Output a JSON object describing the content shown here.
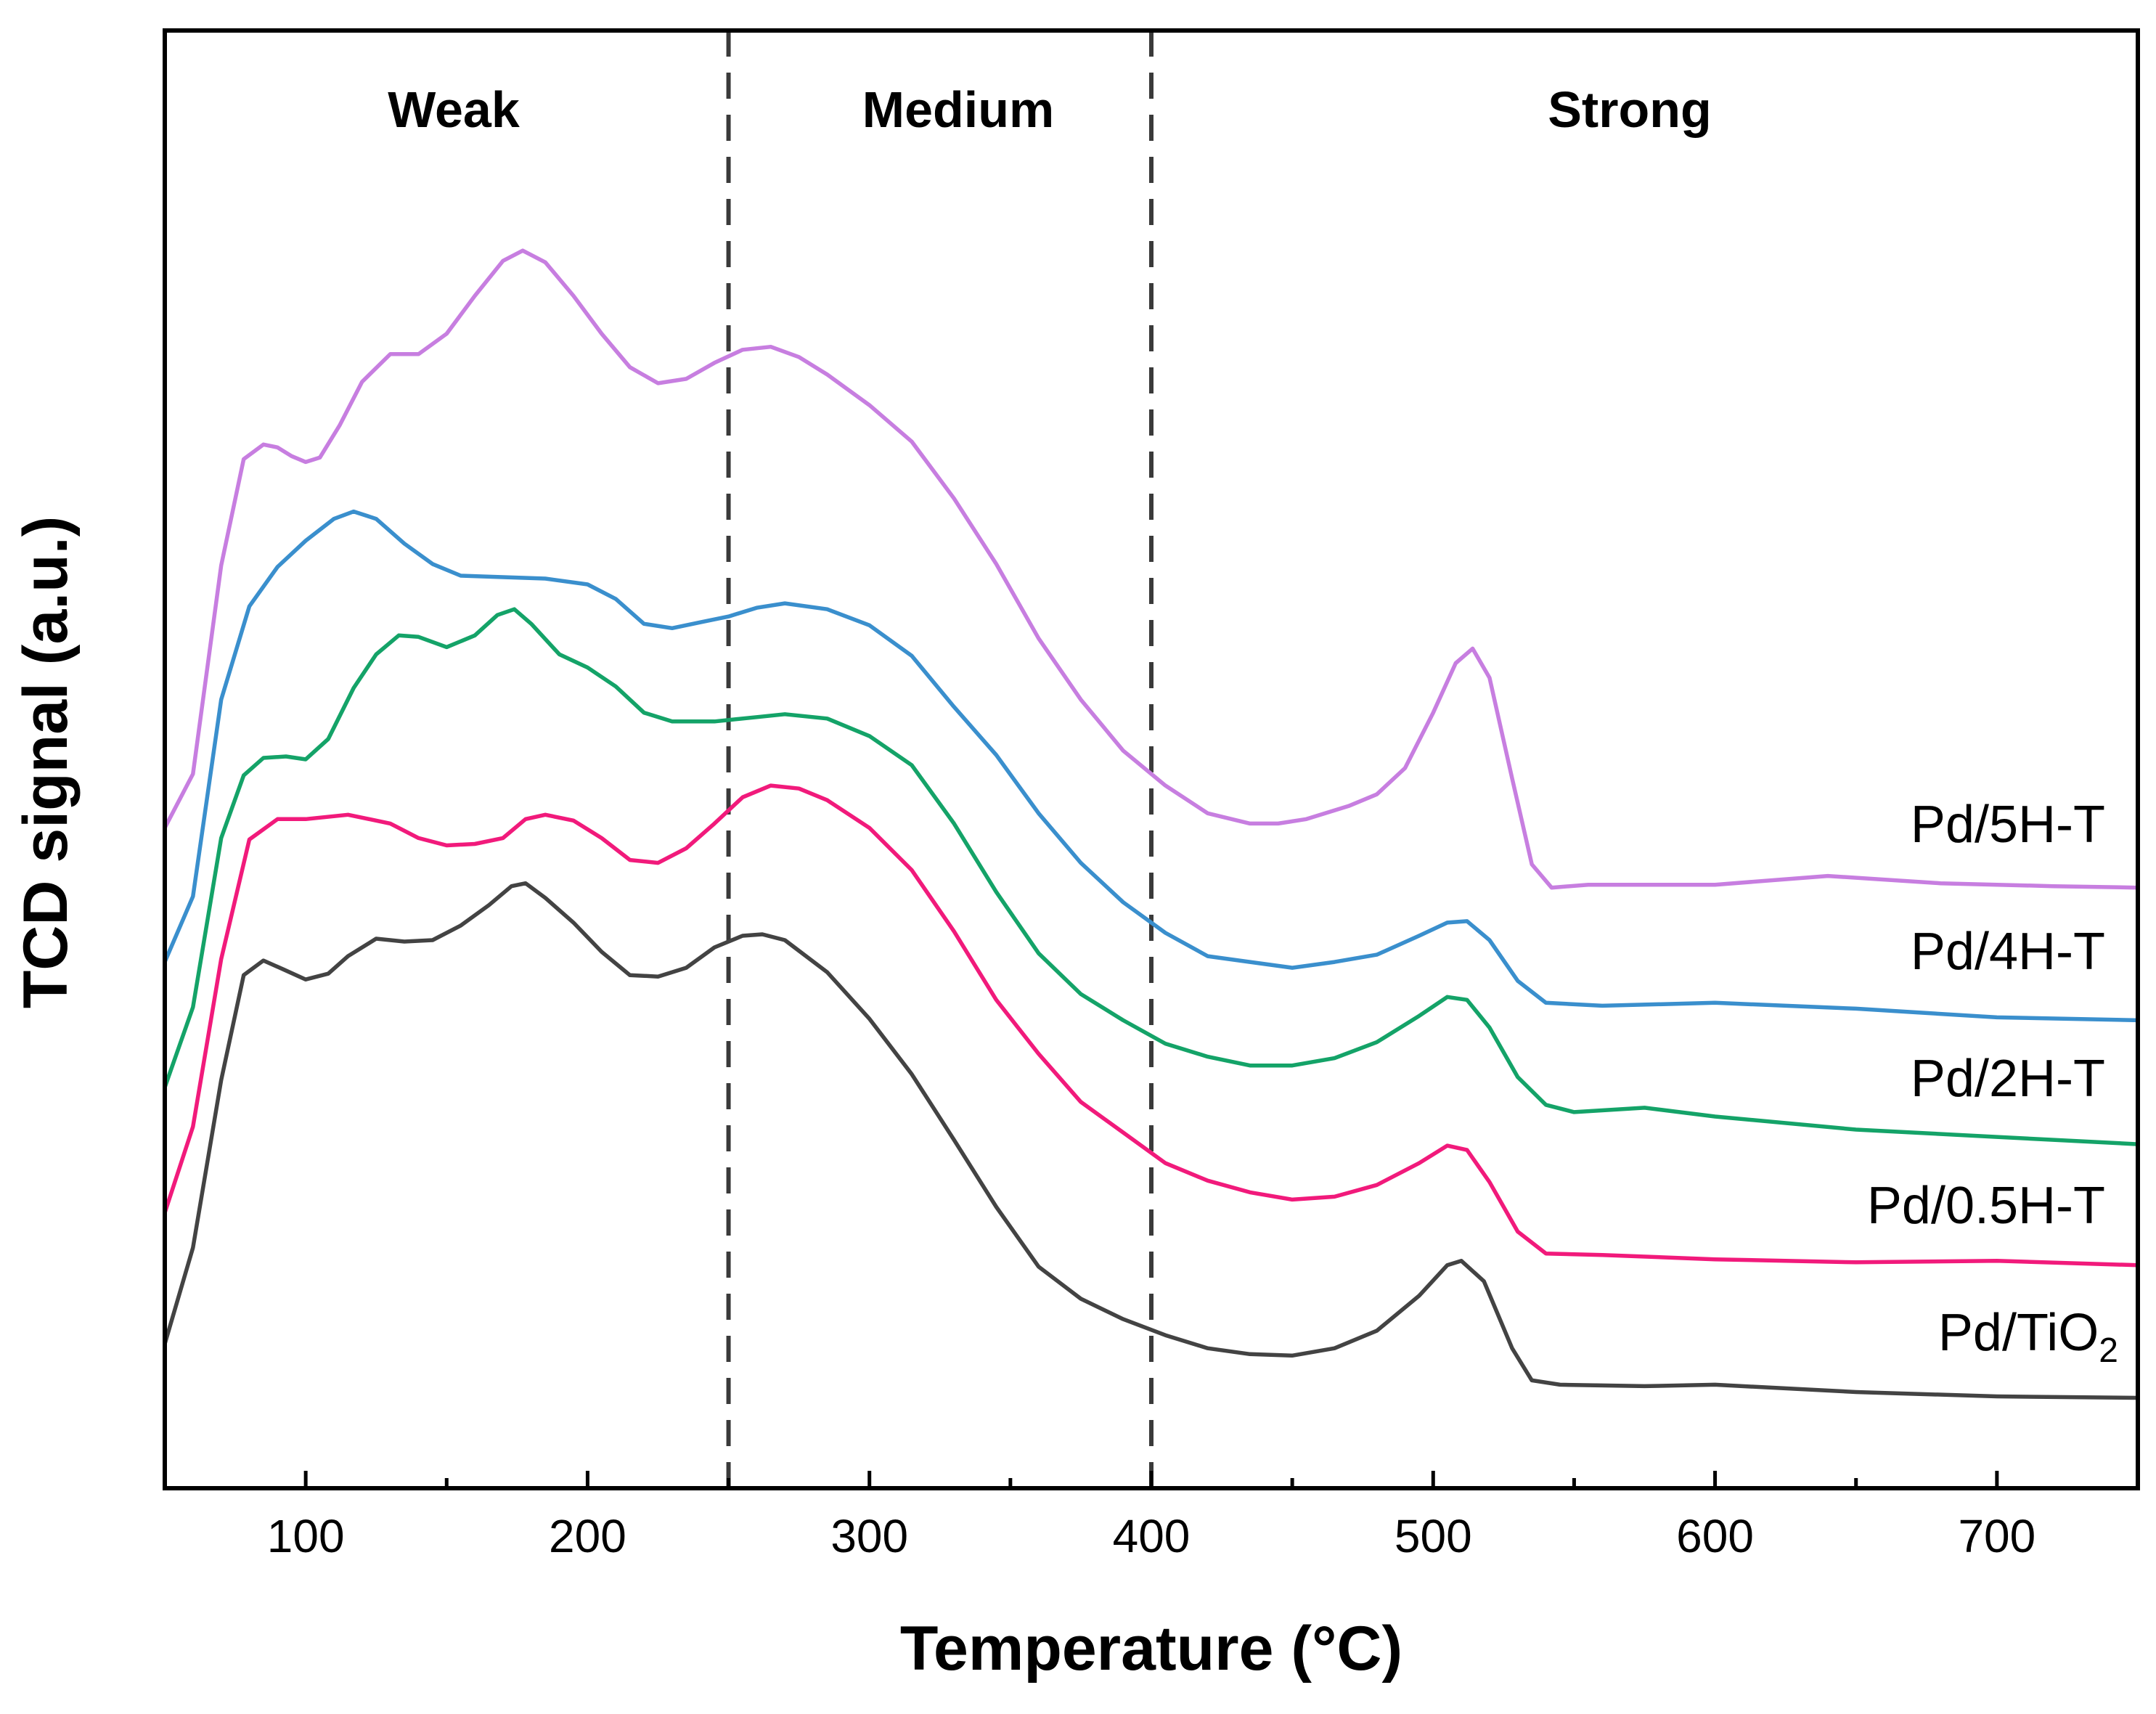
{
  "chart_data": {
    "type": "line",
    "title": "",
    "xlabel": "Temperature (°C)",
    "ylabel": "TCD signal (a.u.)",
    "xlim": [
      50,
      750
    ],
    "ylim": [
      0,
      100
    ],
    "xticks": [
      100,
      200,
      300,
      400,
      500,
      600,
      700
    ],
    "yticks_shown": false,
    "regions": [
      {
        "label": "Weak",
        "from": 50,
        "to": 250
      },
      {
        "label": "Medium",
        "from": 250,
        "to": 400
      },
      {
        "label": "Strong",
        "from": 400,
        "to": 750
      }
    ],
    "dividers": [
      250,
      400
    ],
    "series": [
      {
        "name": "Pd/5H-T",
        "label_main": "Pd/5H-T",
        "label_sub": "",
        "color": "#c77ee0",
        "points": [
          [
            50,
            45.3
          ],
          [
            60,
            49.0
          ],
          [
            70,
            63.3
          ],
          [
            78,
            70.6
          ],
          [
            85,
            71.6
          ],
          [
            90,
            71.4
          ],
          [
            95,
            70.8
          ],
          [
            100,
            70.4
          ],
          [
            105,
            70.7
          ],
          [
            112,
            72.9
          ],
          [
            120,
            75.9
          ],
          [
            130,
            77.8
          ],
          [
            140,
            77.8
          ],
          [
            150,
            79.2
          ],
          [
            160,
            81.8
          ],
          [
            170,
            84.2
          ],
          [
            177,
            84.9
          ],
          [
            185,
            84.1
          ],
          [
            195,
            81.8
          ],
          [
            205,
            79.2
          ],
          [
            215,
            76.9
          ],
          [
            225,
            75.8
          ],
          [
            235,
            76.1
          ],
          [
            245,
            77.2
          ],
          [
            255,
            78.1
          ],
          [
            265,
            78.3
          ],
          [
            275,
            77.6
          ],
          [
            285,
            76.4
          ],
          [
            300,
            74.3
          ],
          [
            315,
            71.8
          ],
          [
            330,
            67.9
          ],
          [
            345,
            63.4
          ],
          [
            360,
            58.3
          ],
          [
            375,
            54.1
          ],
          [
            390,
            50.6
          ],
          [
            405,
            48.2
          ],
          [
            420,
            46.3
          ],
          [
            435,
            45.6
          ],
          [
            445,
            45.6
          ],
          [
            455,
            45.9
          ],
          [
            470,
            46.8
          ],
          [
            480,
            47.6
          ],
          [
            490,
            49.4
          ],
          [
            500,
            53.2
          ],
          [
            508,
            56.6
          ],
          [
            514,
            57.6
          ],
          [
            520,
            55.6
          ],
          [
            528,
            48.7
          ],
          [
            535,
            42.8
          ],
          [
            542,
            41.2
          ],
          [
            555,
            41.4
          ],
          [
            600,
            41.4
          ],
          [
            640,
            42.0
          ],
          [
            680,
            41.5
          ],
          [
            720,
            41.3
          ],
          [
            750,
            41.2
          ]
        ]
      },
      {
        "name": "Pd/4H-T",
        "label_main": "Pd/4H-T",
        "label_sub": "",
        "color": "#3a8fcd",
        "points": [
          [
            50,
            36.1
          ],
          [
            60,
            40.6
          ],
          [
            70,
            54.1
          ],
          [
            80,
            60.5
          ],
          [
            90,
            63.2
          ],
          [
            100,
            65.0
          ],
          [
            110,
            66.5
          ],
          [
            117,
            67.0
          ],
          [
            125,
            66.5
          ],
          [
            135,
            64.8
          ],
          [
            145,
            63.4
          ],
          [
            155,
            62.6
          ],
          [
            170,
            62.5
          ],
          [
            185,
            62.4
          ],
          [
            200,
            62.0
          ],
          [
            210,
            61.0
          ],
          [
            220,
            59.3
          ],
          [
            230,
            59.0
          ],
          [
            240,
            59.4
          ],
          [
            250,
            59.8
          ],
          [
            260,
            60.4
          ],
          [
            270,
            60.7
          ],
          [
            285,
            60.3
          ],
          [
            300,
            59.2
          ],
          [
            315,
            57.1
          ],
          [
            330,
            53.6
          ],
          [
            345,
            50.3
          ],
          [
            360,
            46.3
          ],
          [
            375,
            42.9
          ],
          [
            390,
            40.2
          ],
          [
            405,
            38.1
          ],
          [
            420,
            36.5
          ],
          [
            435,
            36.1
          ],
          [
            450,
            35.7
          ],
          [
            465,
            36.1
          ],
          [
            480,
            36.6
          ],
          [
            495,
            37.9
          ],
          [
            505,
            38.8
          ],
          [
            512,
            38.9
          ],
          [
            520,
            37.6
          ],
          [
            530,
            34.8
          ],
          [
            540,
            33.3
          ],
          [
            560,
            33.1
          ],
          [
            600,
            33.3
          ],
          [
            650,
            32.9
          ],
          [
            700,
            32.3
          ],
          [
            750,
            32.1
          ]
        ]
      },
      {
        "name": "Pd/2H-T",
        "label_main": "Pd/2H-T",
        "label_sub": "",
        "color": "#14a368",
        "points": [
          [
            50,
            27.5
          ],
          [
            60,
            33.0
          ],
          [
            70,
            44.6
          ],
          [
            78,
            48.9
          ],
          [
            85,
            50.1
          ],
          [
            93,
            50.2
          ],
          [
            100,
            50.0
          ],
          [
            108,
            51.4
          ],
          [
            117,
            54.9
          ],
          [
            125,
            57.2
          ],
          [
            133,
            58.5
          ],
          [
            140,
            58.4
          ],
          [
            150,
            57.7
          ],
          [
            160,
            58.5
          ],
          [
            168,
            59.9
          ],
          [
            174,
            60.3
          ],
          [
            180,
            59.3
          ],
          [
            190,
            57.2
          ],
          [
            200,
            56.3
          ],
          [
            210,
            55.0
          ],
          [
            220,
            53.2
          ],
          [
            230,
            52.6
          ],
          [
            245,
            52.6
          ],
          [
            260,
            52.9
          ],
          [
            270,
            53.1
          ],
          [
            285,
            52.8
          ],
          [
            300,
            51.6
          ],
          [
            315,
            49.6
          ],
          [
            330,
            45.6
          ],
          [
            345,
            40.9
          ],
          [
            360,
            36.7
          ],
          [
            375,
            33.9
          ],
          [
            390,
            32.1
          ],
          [
            405,
            30.5
          ],
          [
            420,
            29.6
          ],
          [
            435,
            29.0
          ],
          [
            450,
            29.0
          ],
          [
            465,
            29.5
          ],
          [
            480,
            30.6
          ],
          [
            495,
            32.4
          ],
          [
            505,
            33.7
          ],
          [
            512,
            33.5
          ],
          [
            520,
            31.6
          ],
          [
            530,
            28.2
          ],
          [
            540,
            26.3
          ],
          [
            550,
            25.8
          ],
          [
            575,
            26.1
          ],
          [
            600,
            25.5
          ],
          [
            650,
            24.6
          ],
          [
            700,
            24.1
          ],
          [
            750,
            23.6
          ]
        ]
      },
      {
        "name": "Pd/0.5H-T",
        "label_main": "Pd/0.5H-T",
        "label_sub": "",
        "color": "#f11a7b",
        "points": [
          [
            50,
            18.9
          ],
          [
            60,
            24.8
          ],
          [
            70,
            36.3
          ],
          [
            80,
            44.5
          ],
          [
            90,
            45.9
          ],
          [
            100,
            45.9
          ],
          [
            115,
            46.2
          ],
          [
            130,
            45.6
          ],
          [
            140,
            44.6
          ],
          [
            150,
            44.1
          ],
          [
            160,
            44.2
          ],
          [
            170,
            44.6
          ],
          [
            178,
            45.9
          ],
          [
            185,
            46.2
          ],
          [
            195,
            45.8
          ],
          [
            205,
            44.6
          ],
          [
            215,
            43.1
          ],
          [
            225,
            42.9
          ],
          [
            235,
            43.9
          ],
          [
            245,
            45.6
          ],
          [
            255,
            47.4
          ],
          [
            265,
            48.2
          ],
          [
            275,
            48.0
          ],
          [
            285,
            47.2
          ],
          [
            300,
            45.3
          ],
          [
            315,
            42.4
          ],
          [
            330,
            38.2
          ],
          [
            345,
            33.5
          ],
          [
            360,
            29.8
          ],
          [
            375,
            26.5
          ],
          [
            390,
            24.4
          ],
          [
            405,
            22.3
          ],
          [
            420,
            21.1
          ],
          [
            435,
            20.3
          ],
          [
            450,
            19.8
          ],
          [
            465,
            20.0
          ],
          [
            480,
            20.8
          ],
          [
            495,
            22.3
          ],
          [
            505,
            23.5
          ],
          [
            512,
            23.2
          ],
          [
            520,
            21.0
          ],
          [
            530,
            17.6
          ],
          [
            540,
            16.1
          ],
          [
            560,
            16.0
          ],
          [
            600,
            15.7
          ],
          [
            650,
            15.5
          ],
          [
            700,
            15.6
          ],
          [
            750,
            15.3
          ]
        ]
      },
      {
        "name": "Pd/TiO2",
        "label_main": "Pd/TiO",
        "label_sub": "2",
        "color": "#434343",
        "points": [
          [
            50,
            9.9
          ],
          [
            60,
            16.5
          ],
          [
            70,
            28.0
          ],
          [
            78,
            35.2
          ],
          [
            85,
            36.2
          ],
          [
            92,
            35.6
          ],
          [
            100,
            34.9
          ],
          [
            108,
            35.3
          ],
          [
            115,
            36.5
          ],
          [
            125,
            37.7
          ],
          [
            135,
            37.5
          ],
          [
            145,
            37.6
          ],
          [
            155,
            38.6
          ],
          [
            165,
            40.0
          ],
          [
            173,
            41.3
          ],
          [
            178,
            41.5
          ],
          [
            185,
            40.5
          ],
          [
            195,
            38.8
          ],
          [
            205,
            36.8
          ],
          [
            215,
            35.2
          ],
          [
            225,
            35.1
          ],
          [
            235,
            35.7
          ],
          [
            245,
            37.1
          ],
          [
            255,
            37.9
          ],
          [
            262,
            38.0
          ],
          [
            270,
            37.6
          ],
          [
            285,
            35.4
          ],
          [
            300,
            32.2
          ],
          [
            315,
            28.4
          ],
          [
            330,
            23.9
          ],
          [
            345,
            19.3
          ],
          [
            360,
            15.2
          ],
          [
            375,
            13.0
          ],
          [
            390,
            11.6
          ],
          [
            405,
            10.5
          ],
          [
            420,
            9.6
          ],
          [
            435,
            9.2
          ],
          [
            450,
            9.1
          ],
          [
            465,
            9.6
          ],
          [
            480,
            10.8
          ],
          [
            495,
            13.2
          ],
          [
            505,
            15.3
          ],
          [
            510,
            15.6
          ],
          [
            518,
            14.2
          ],
          [
            528,
            9.6
          ],
          [
            535,
            7.4
          ],
          [
            545,
            7.1
          ],
          [
            575,
            7.0
          ],
          [
            600,
            7.1
          ],
          [
            650,
            6.6
          ],
          [
            700,
            6.3
          ],
          [
            750,
            6.2
          ]
        ]
      }
    ]
  }
}
